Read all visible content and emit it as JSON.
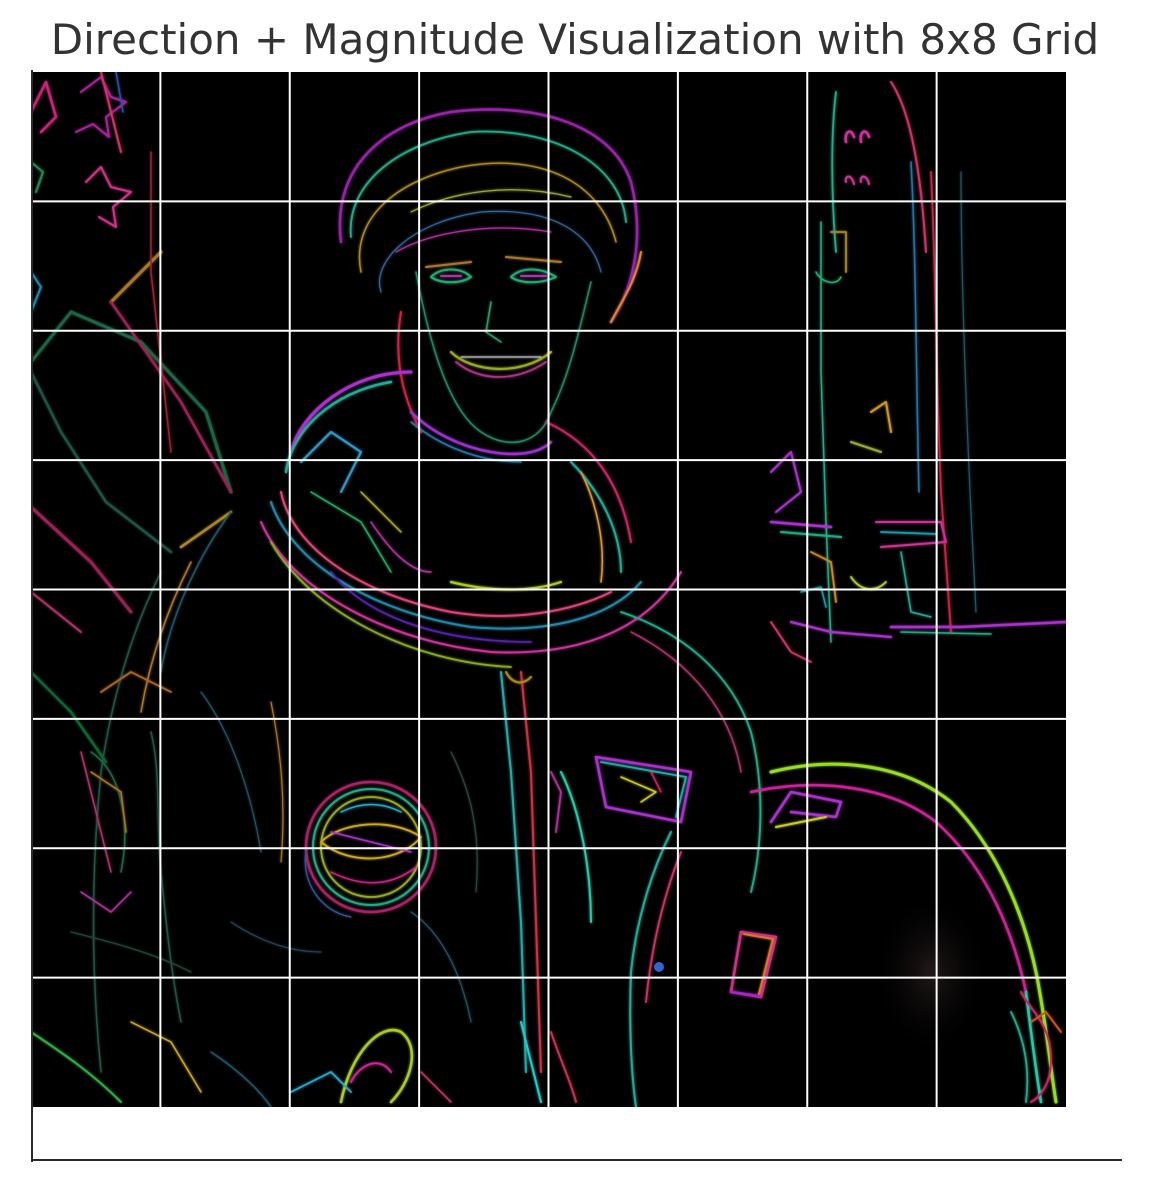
{
  "figure": {
    "title": "Direction + Magnitude Visualization with 8x8 Grid"
  },
  "grid": {
    "rows": 8,
    "cols": 8,
    "line_color": "#ffffff"
  },
  "colors": {
    "image_background": "#000000",
    "page_background": "#ffffff",
    "axis_color": "#2a2a2a"
  }
}
